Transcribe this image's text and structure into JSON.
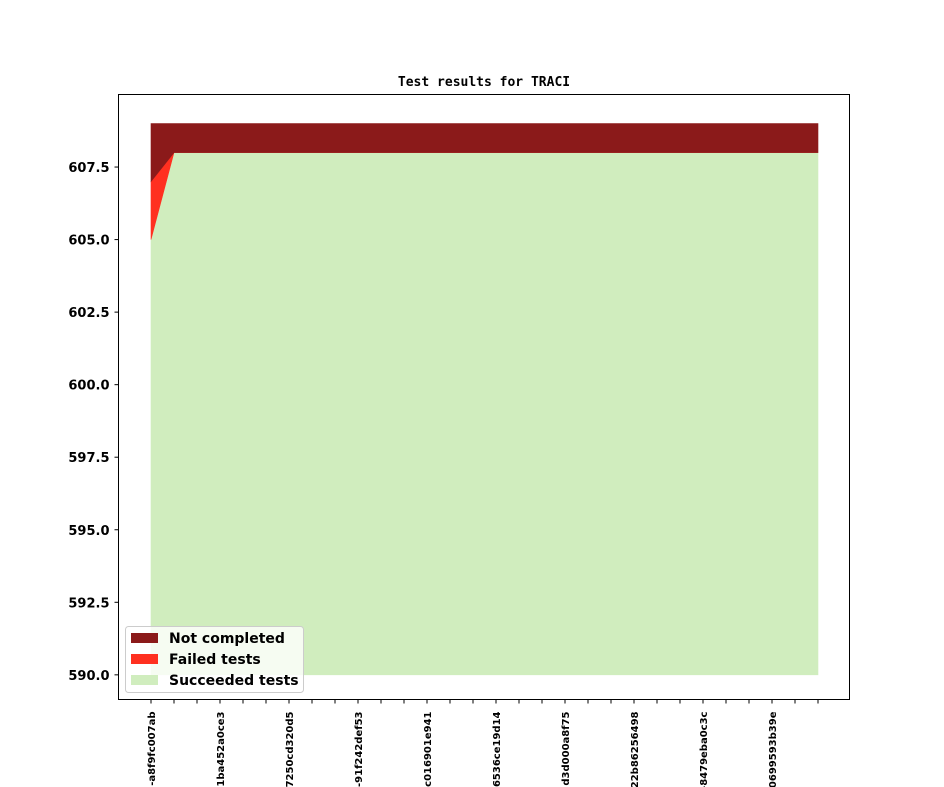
{
  "chart_data": {
    "type": "area",
    "title": "Test results for TRACI",
    "xlabel": "",
    "ylabel": "",
    "ylim": [
      589.15,
      610.0
    ],
    "yticks": [
      "590.0",
      "592.5",
      "595.0",
      "597.5",
      "600.0",
      "602.5",
      "605.0",
      "607.5"
    ],
    "x_tick_labels": [
      "-a8f9fc007ab",
      "-1ba452a0ce3",
      "7250cd320d5",
      "-91f242def53",
      "c016901e941",
      "6536ce19d14",
      "d3d000a8f75",
      "22b86256498",
      "-8479eba0c3c",
      "0699593b39e"
    ],
    "n_points": 30,
    "baseline": 590,
    "series": [
      {
        "name": "Succeeded tests",
        "color": "#d0edbe",
        "values_first": [
          605,
          608
        ],
        "values_rest": 608
      },
      {
        "name": "Failed tests",
        "color": "#ff3020",
        "values_first": [
          2,
          0
        ],
        "values_rest": 0
      },
      {
        "name": "Not completed",
        "color": "#8b1a1a",
        "values_first": [
          2,
          1
        ],
        "values_rest": 1
      }
    ],
    "legend": {
      "placement": "lower-left",
      "entries": [
        "Not completed",
        "Failed tests",
        "Succeeded tests"
      ]
    },
    "grid": false
  }
}
